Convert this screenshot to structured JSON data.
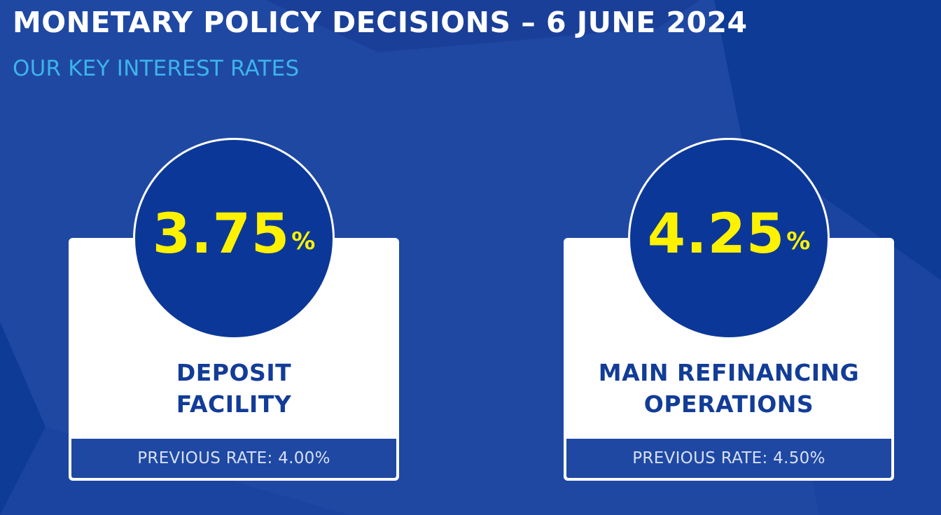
{
  "header": {
    "title": "MONETARY POLICY DECISIONS – 6 JUNE 2024",
    "subtitle": "OUR KEY INTEREST RATES"
  },
  "rates": [
    {
      "value": "3.75",
      "unit": "%",
      "label_line1": "DEPOSIT",
      "label_line2": "FACILITY",
      "previous": "PREVIOUS RATE: 4.00%"
    },
    {
      "value": "4.25",
      "unit": "%",
      "label_line1": "MAIN REFINANCING",
      "label_line2": "OPERATIONS",
      "previous": "PREVIOUS RATE: 4.50%"
    }
  ],
  "colors": {
    "background": "#1f48a3",
    "circle": "#0b3898",
    "rate_text": "#fff200",
    "label_text": "#123c97",
    "subtitle": "#3cb4ea"
  }
}
